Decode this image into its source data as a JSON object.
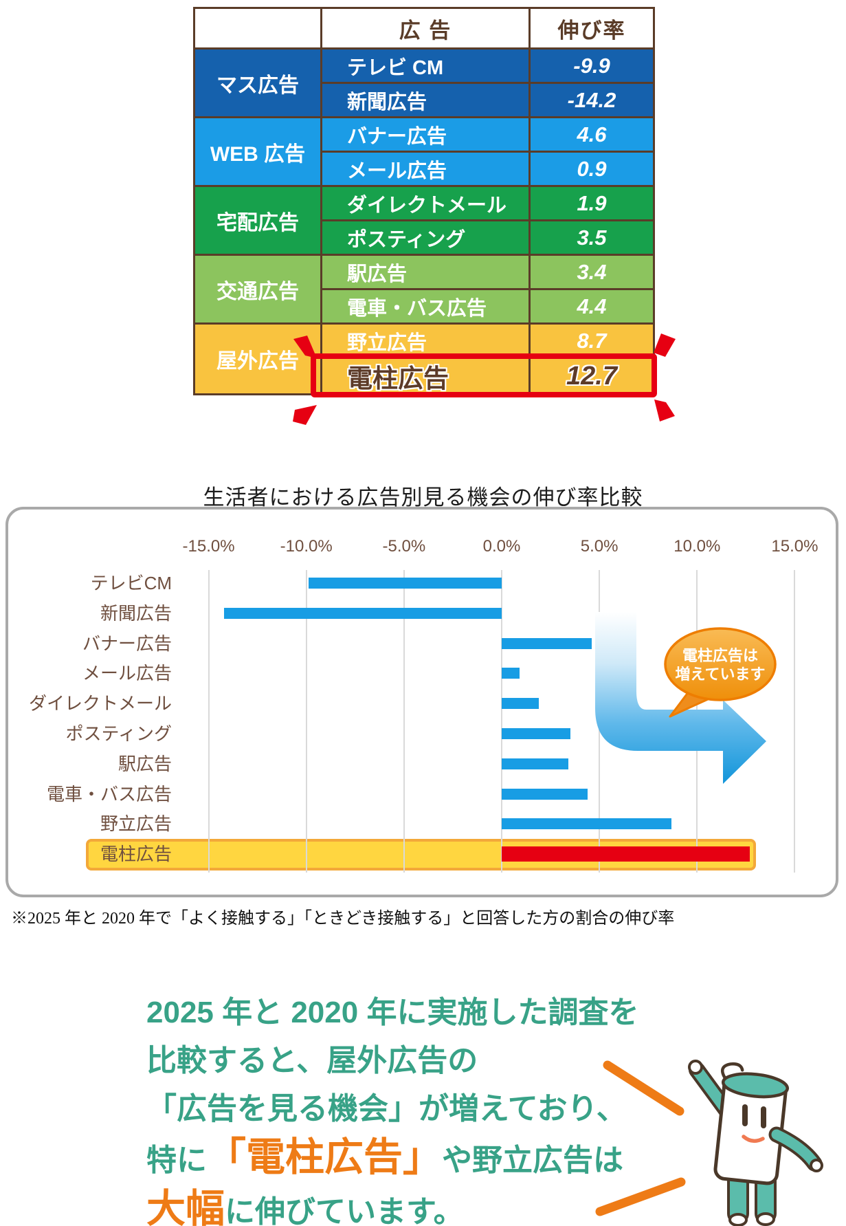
{
  "table": {
    "header": {
      "ad": "広 告",
      "rate": "伸び率"
    },
    "highlight_border_color": "#e60012",
    "border_color": "#5a3c28",
    "groups": [
      {
        "category": "マス広告",
        "color": "#1561ad",
        "rows": [
          {
            "ad": "テレビ CM",
            "rate": "-9.9"
          },
          {
            "ad": "新聞広告",
            "rate": "-14.2"
          }
        ]
      },
      {
        "category": "WEB 広告",
        "color": "#1b9ce6",
        "rows": [
          {
            "ad": "バナー広告",
            "rate": "4.6"
          },
          {
            "ad": "メール広告",
            "rate": "0.9"
          }
        ]
      },
      {
        "category": "宅配広告",
        "color": "#17a14c",
        "rows": [
          {
            "ad": "ダイレクトメール",
            "rate": "1.9"
          },
          {
            "ad": "ポスティング",
            "rate": "3.5"
          }
        ]
      },
      {
        "category": "交通広告",
        "color": "#8cc45e",
        "rows": [
          {
            "ad": "駅広告",
            "rate": "3.4"
          },
          {
            "ad": "電車・バス広告",
            "rate": "4.4"
          }
        ]
      },
      {
        "category": "屋外広告",
        "color": "#f9c33f",
        "rows": [
          {
            "ad": "野立広告",
            "rate": "8.7"
          },
          {
            "ad": "電柱広告",
            "rate": "12.7",
            "highlight": true
          }
        ]
      }
    ]
  },
  "chart_data": {
    "type": "bar",
    "orientation": "horizontal",
    "title": "生活者における広告別見る機会の伸び率比較",
    "categories": [
      "テレビCM",
      "新聞広告",
      "バナー広告",
      "メール広告",
      "ダイレクトメール",
      "ポスティング",
      "駅広告",
      "電車・バス広告",
      "野立広告",
      "電柱広告"
    ],
    "values": [
      -9.9,
      -14.2,
      4.6,
      0.9,
      1.9,
      3.5,
      3.4,
      4.4,
      8.7,
      12.7
    ],
    "xlim": [
      -15,
      15
    ],
    "x_ticks": [
      "-15.0%",
      "-10.0%",
      "-5.0%",
      "0.0%",
      "5.0%",
      "10.0%",
      "15.0%"
    ],
    "x_tick_values": [
      -15,
      -10,
      -5,
      0,
      5,
      10,
      15
    ],
    "grid": true,
    "bar_color": "#189de4",
    "highlight_index": 9,
    "highlight_bar_color": "#e60012",
    "highlight_band_color": "#ffd640",
    "highlight_band_border": "#f3a839"
  },
  "bubble": {
    "line1": "電柱広告は",
    "line2": "増えています",
    "fill": "#f29b20",
    "border": "#ee7d00"
  },
  "footnote": "※2025 年と 2020 年で「よく接触する」「ときどき接触する」と回答した方の割合の伸び率",
  "message": {
    "teal_color": "#38a287",
    "orange_color": "#ee7b16",
    "lines": [
      [
        {
          "t": "2025 年と 2020 年に実施した調査を",
          "s": "teal"
        }
      ],
      [
        {
          "t": "比較すると、屋外広告の",
          "s": "teal"
        }
      ],
      [
        {
          "t": "「広告を見る機会」が増えており、",
          "s": "teal"
        }
      ],
      [
        {
          "t": "特に",
          "s": "teal"
        },
        {
          "t": "「電柱広告」",
          "s": "orange"
        },
        {
          "t": "や野立広告は",
          "s": "teal"
        }
      ],
      [
        {
          "t": "大幅",
          "s": "orange"
        },
        {
          "t": "に伸びています。",
          "s": "teal"
        }
      ]
    ]
  }
}
